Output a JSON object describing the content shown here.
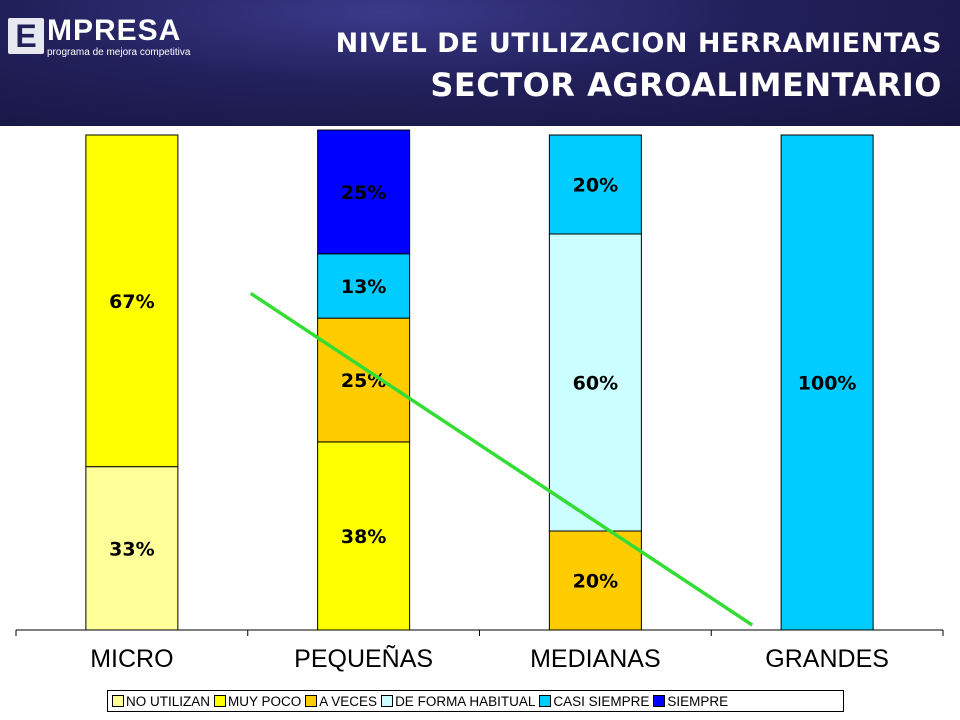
{
  "header": {
    "logo_letter": "E",
    "logo_word": "MPRESA",
    "logo_sub": "programa de mejora competitiva",
    "title_line1": "NIVEL DE UTILIZACION HERRAMIENTAS",
    "title_line2": "SECTOR AGROALIMENTARIO"
  },
  "chart_data": {
    "type": "bar",
    "stacked": true,
    "normalized_percent": true,
    "categories": [
      "MICRO",
      "PEQUEÑAS",
      "MEDIANAS",
      "GRANDES"
    ],
    "series": [
      {
        "name": "NO UTILIZAN",
        "color": "#ffff99",
        "values": [
          33,
          0,
          0,
          0
        ],
        "labels": [
          "33%",
          "",
          "",
          ""
        ]
      },
      {
        "name": "MUY POCO",
        "color": "#ffff00",
        "values": [
          67,
          38,
          0,
          0
        ],
        "labels": [
          "67%",
          "38%",
          "",
          ""
        ]
      },
      {
        "name": "A VECES",
        "color": "#ffcc00",
        "values": [
          0,
          25,
          20,
          0
        ],
        "labels": [
          "",
          "25%",
          "20%",
          ""
        ]
      },
      {
        "name": "DE FORMA HABITUAL",
        "color": "#ccffff",
        "values": [
          0,
          0,
          60,
          0
        ],
        "labels": [
          "",
          "",
          "60%",
          ""
        ]
      },
      {
        "name": "CASI SIEMPRE",
        "color": "#00ccff",
        "values": [
          0,
          13,
          20,
          100
        ],
        "labels": [
          "",
          "13%",
          "20%",
          "100%"
        ]
      },
      {
        "name": "SIEMPRE",
        "color": "#0000ff",
        "values": [
          0,
          25,
          0,
          0
        ],
        "labels": [
          "",
          "25%",
          "",
          ""
        ]
      }
    ],
    "ylim": [
      0,
      100
    ],
    "legend_position": "bottom",
    "grid": false,
    "annotation": {
      "type": "trend-line",
      "color": "#33dd33",
      "from": {
        "category": "MICRO-PEQUEÑAS gap",
        "y": 68
      },
      "to": {
        "category": "MEDIANAS-GRANDES gap",
        "y": 1
      }
    }
  }
}
